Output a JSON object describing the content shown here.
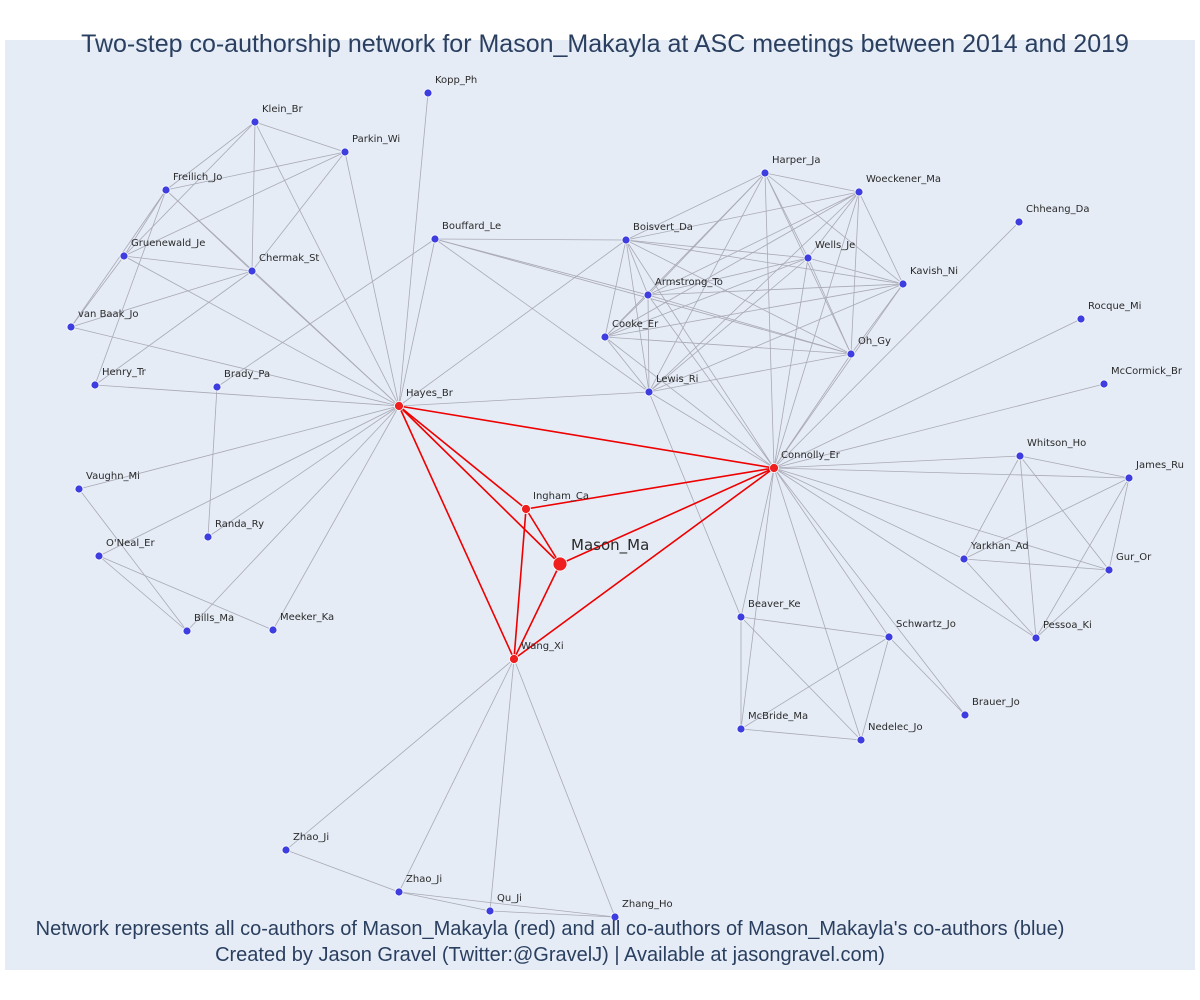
{
  "title": "Two-step co-authorship network for Mason_Makayla at ASC meetings between 2014 and 2019",
  "footer": {
    "line1": "Network represents all co-authors of Mason_Makayla (red) and all co-authors of Mason_Makayla's co-authors (blue)",
    "line2": "Created by Jason Gravel (Twitter:@GravelJ) | Available at jasongravel.com)"
  },
  "colors": {
    "ego": "#ef1f1f",
    "first_degree": "#ef1f1f",
    "second_degree": "#3d3de0",
    "red_edge": "#ee0000",
    "gray_edge": "#a9a9b5",
    "background": "#e5ecf6"
  },
  "nodes": [
    {
      "id": "Mason_Ma",
      "group": "ego"
    },
    {
      "id": "Hayes_Br",
      "group": "coauthor"
    },
    {
      "id": "Connolly_Er",
      "group": "coauthor"
    },
    {
      "id": "Ingham_Ca",
      "group": "coauthor"
    },
    {
      "id": "Wang_Xi",
      "group": "coauthor"
    },
    {
      "id": "Kopp_Ph",
      "group": "second"
    },
    {
      "id": "Klein_Br",
      "group": "second"
    },
    {
      "id": "Parkin_Wi",
      "group": "second"
    },
    {
      "id": "Freilich_Jo",
      "group": "second"
    },
    {
      "id": "Gruenewald_Je",
      "group": "second"
    },
    {
      "id": "Chermak_St",
      "group": "second"
    },
    {
      "id": "van Baak_Jo",
      "group": "second"
    },
    {
      "id": "Henry_Tr",
      "group": "second"
    },
    {
      "id": "Brady_Pa",
      "group": "second"
    },
    {
      "id": "Bouffard_Le",
      "group": "second"
    },
    {
      "id": "Vaughn_Mi",
      "group": "second"
    },
    {
      "id": "O'Neal_Er",
      "group": "second"
    },
    {
      "id": "Randa_Ry",
      "group": "second"
    },
    {
      "id": "Bills_Ma",
      "group": "second"
    },
    {
      "id": "Meeker_Ka",
      "group": "second"
    },
    {
      "id": "Harper_Ja",
      "group": "second"
    },
    {
      "id": "Woeckener_Ma",
      "group": "second"
    },
    {
      "id": "Boisvert_Da",
      "group": "second"
    },
    {
      "id": "Wells_Je",
      "group": "second"
    },
    {
      "id": "Kavish_Ni",
      "group": "second"
    },
    {
      "id": "Armstrong_To",
      "group": "second"
    },
    {
      "id": "Cooke_Er",
      "group": "second"
    },
    {
      "id": "Oh_Gy",
      "group": "second"
    },
    {
      "id": "Lewis_Ri",
      "group": "second"
    },
    {
      "id": "Chheang_Da",
      "group": "second"
    },
    {
      "id": "Rocque_Mi",
      "group": "second"
    },
    {
      "id": "McCormick_Br",
      "group": "second"
    },
    {
      "id": "Whitson_Ho",
      "group": "second"
    },
    {
      "id": "James_Ru",
      "group": "second"
    },
    {
      "id": "Yarkhan_Ad",
      "group": "second"
    },
    {
      "id": "Gur_Or",
      "group": "second"
    },
    {
      "id": "Pessoa_Ki",
      "group": "second"
    },
    {
      "id": "Beaver_Ke",
      "group": "second"
    },
    {
      "id": "Schwartz_Jo",
      "group": "second"
    },
    {
      "id": "Brauer_Jo",
      "group": "second"
    },
    {
      "id": "McBride_Ma",
      "group": "second"
    },
    {
      "id": "Nedelec_Jo",
      "group": "second"
    },
    {
      "id": "Zhao_Ji (1)",
      "label": "Zhao_Ji",
      "group": "second"
    },
    {
      "id": "Zhao_Ji (2)",
      "label": "Zhao_Ji",
      "group": "second"
    },
    {
      "id": "Qu_Ji",
      "group": "second"
    },
    {
      "id": "Zhang_Ho",
      "group": "second"
    }
  ],
  "edges": [
    [
      "Mason_Ma",
      "Hayes_Br"
    ],
    [
      "Mason_Ma",
      "Connolly_Er"
    ],
    [
      "Mason_Ma",
      "Ingham_Ca"
    ],
    [
      "Mason_Ma",
      "Wang_Xi"
    ],
    [
      "Hayes_Br",
      "Ingham_Ca"
    ],
    [
      "Hayes_Br",
      "Wang_Xi"
    ],
    [
      "Hayes_Br",
      "Connolly_Er"
    ],
    [
      "Ingham_Ca",
      "Connolly_Er"
    ],
    [
      "Ingham_Ca",
      "Wang_Xi"
    ],
    [
      "Wang_Xi",
      "Connolly_Er"
    ],
    [
      "Hayes_Br",
      "Kopp_Ph"
    ],
    [
      "Hayes_Br",
      "Klein_Br"
    ],
    [
      "Hayes_Br",
      "Parkin_Wi"
    ],
    [
      "Hayes_Br",
      "Freilich_Jo"
    ],
    [
      "Hayes_Br",
      "Gruenewald_Je"
    ],
    [
      "Hayes_Br",
      "Chermak_St"
    ],
    [
      "Hayes_Br",
      "van Baak_Jo"
    ],
    [
      "Hayes_Br",
      "Henry_Tr"
    ],
    [
      "Hayes_Br",
      "Bouffard_Le"
    ],
    [
      "Hayes_Br",
      "Boisvert_Da"
    ],
    [
      "Hayes_Br",
      "Lewis_Ri"
    ],
    [
      "Hayes_Br",
      "Vaughn_Mi"
    ],
    [
      "Hayes_Br",
      "O'Neal_Er"
    ],
    [
      "Hayes_Br",
      "Bills_Ma"
    ],
    [
      "Hayes_Br",
      "Meeker_Ka"
    ],
    [
      "Hayes_Br",
      "Randa_Ry"
    ],
    [
      "Klein_Br",
      "Parkin_Wi"
    ],
    [
      "Klein_Br",
      "Freilich_Jo"
    ],
    [
      "Klein_Br",
      "Gruenewald_Je"
    ],
    [
      "Klein_Br",
      "Chermak_St"
    ],
    [
      "Parkin_Wi",
      "Freilich_Jo"
    ],
    [
      "Parkin_Wi",
      "Gruenewald_Je"
    ],
    [
      "Parkin_Wi",
      "Chermak_St"
    ],
    [
      "Freilich_Jo",
      "Gruenewald_Je"
    ],
    [
      "Freilich_Jo",
      "Chermak_St"
    ],
    [
      "Freilich_Jo",
      "van Baak_Jo"
    ],
    [
      "Freilich_Jo",
      "Henry_Tr"
    ],
    [
      "Gruenewald_Je",
      "Chermak_St"
    ],
    [
      "Gruenewald_Je",
      "van Baak_Jo"
    ],
    [
      "Chermak_St",
      "van Baak_Jo"
    ],
    [
      "Chermak_St",
      "Henry_Tr"
    ],
    [
      "Brady_Pa",
      "Bouffard_Le"
    ],
    [
      "Brady_Pa",
      "Randa_Ry"
    ],
    [
      "O'Neal_Er",
      "Bills_Ma"
    ],
    [
      "O'Neal_Er",
      "Meeker_Ka"
    ],
    [
      "Vaughn_Mi",
      "Bills_Ma"
    ],
    [
      "Bouffard_Le",
      "Boisvert_Da"
    ],
    [
      "Bouffard_Le",
      "Armstrong_To"
    ],
    [
      "Bouffard_Le",
      "Lewis_Ri"
    ],
    [
      "Bouffard_Le",
      "Oh_Gy"
    ],
    [
      "Connolly_Er",
      "Harper_Ja"
    ],
    [
      "Connolly_Er",
      "Woeckener_Ma"
    ],
    [
      "Connolly_Er",
      "Boisvert_Da"
    ],
    [
      "Connolly_Er",
      "Wells_Je"
    ],
    [
      "Connolly_Er",
      "Kavish_Ni"
    ],
    [
      "Connolly_Er",
      "Armstrong_To"
    ],
    [
      "Connolly_Er",
      "Cooke_Er"
    ],
    [
      "Connolly_Er",
      "Oh_Gy"
    ],
    [
      "Connolly_Er",
      "Lewis_Ri"
    ],
    [
      "Connolly_Er",
      "Chheang_Da"
    ],
    [
      "Connolly_Er",
      "Rocque_Mi"
    ],
    [
      "Connolly_Er",
      "McCormick_Br"
    ],
    [
      "Connolly_Er",
      "Whitson_Ho"
    ],
    [
      "Connolly_Er",
      "James_Ru"
    ],
    [
      "Connolly_Er",
      "Yarkhan_Ad"
    ],
    [
      "Connolly_Er",
      "Gur_Or"
    ],
    [
      "Connolly_Er",
      "Pessoa_Ki"
    ],
    [
      "Connolly_Er",
      "Beaver_Ke"
    ],
    [
      "Connolly_Er",
      "Schwartz_Jo"
    ],
    [
      "Connolly_Er",
      "Brauer_Jo"
    ],
    [
      "Connolly_Er",
      "McBride_Ma"
    ],
    [
      "Connolly_Er",
      "Nedelec_Jo"
    ],
    [
      "Harper_Ja",
      "Woeckener_Ma"
    ],
    [
      "Harper_Ja",
      "Boisvert_Da"
    ],
    [
      "Harper_Ja",
      "Wells_Je"
    ],
    [
      "Harper_Ja",
      "Kavish_Ni"
    ],
    [
      "Harper_Ja",
      "Armstrong_To"
    ],
    [
      "Harper_Ja",
      "Cooke_Er"
    ],
    [
      "Harper_Ja",
      "Oh_Gy"
    ],
    [
      "Harper_Ja",
      "Lewis_Ri"
    ],
    [
      "Woeckener_Ma",
      "Wells_Je"
    ],
    [
      "Woeckener_Ma",
      "Kavish_Ni"
    ],
    [
      "Woeckener_Ma",
      "Armstrong_To"
    ],
    [
      "Woeckener_Ma",
      "Cooke_Er"
    ],
    [
      "Woeckener_Ma",
      "Oh_Gy"
    ],
    [
      "Woeckener_Ma",
      "Lewis_Ri"
    ],
    [
      "Woeckener_Ma",
      "Boisvert_Da"
    ],
    [
      "Boisvert_Da",
      "Wells_Je"
    ],
    [
      "Boisvert_Da",
      "Armstrong_To"
    ],
    [
      "Boisvert_Da",
      "Cooke_Er"
    ],
    [
      "Boisvert_Da",
      "Lewis_Ri"
    ],
    [
      "Boisvert_Da",
      "Oh_Gy"
    ],
    [
      "Boisvert_Da",
      "Kavish_Ni"
    ],
    [
      "Wells_Je",
      "Kavish_Ni"
    ],
    [
      "Wells_Je",
      "Armstrong_To"
    ],
    [
      "Wells_Je",
      "Cooke_Er"
    ],
    [
      "Wells_Je",
      "Oh_Gy"
    ],
    [
      "Wells_Je",
      "Lewis_Ri"
    ],
    [
      "Kavish_Ni",
      "Armstrong_To"
    ],
    [
      "Kavish_Ni",
      "Cooke_Er"
    ],
    [
      "Kavish_Ni",
      "Oh_Gy"
    ],
    [
      "Kavish_Ni",
      "Lewis_Ri"
    ],
    [
      "Armstrong_To",
      "Cooke_Er"
    ],
    [
      "Armstrong_To",
      "Oh_Gy"
    ],
    [
      "Armstrong_To",
      "Lewis_Ri"
    ],
    [
      "Cooke_Er",
      "Oh_Gy"
    ],
    [
      "Cooke_Er",
      "Lewis_Ri"
    ],
    [
      "Oh_Gy",
      "Lewis_Ri"
    ],
    [
      "Lewis_Ri",
      "Beaver_Ke"
    ],
    [
      "Whitson_Ho",
      "James_Ru"
    ],
    [
      "Whitson_Ho",
      "Yarkhan_Ad"
    ],
    [
      "Whitson_Ho",
      "Gur_Or"
    ],
    [
      "Whitson_Ho",
      "Pessoa_Ki"
    ],
    [
      "James_Ru",
      "Yarkhan_Ad"
    ],
    [
      "James_Ru",
      "Gur_Or"
    ],
    [
      "James_Ru",
      "Pessoa_Ki"
    ],
    [
      "Yarkhan_Ad",
      "Gur_Or"
    ],
    [
      "Yarkhan_Ad",
      "Pessoa_Ki"
    ],
    [
      "Gur_Or",
      "Pessoa_Ki"
    ],
    [
      "Beaver_Ke",
      "Schwartz_Jo"
    ],
    [
      "Beaver_Ke",
      "McBride_Ma"
    ],
    [
      "Beaver_Ke",
      "Nedelec_Jo"
    ],
    [
      "Schwartz_Jo",
      "McBride_Ma"
    ],
    [
      "Schwartz_Jo",
      "Nedelec_Jo"
    ],
    [
      "Schwartz_Jo",
      "Brauer_Jo"
    ],
    [
      "McBride_Ma",
      "Nedelec_Jo"
    ],
    [
      "Wang_Xi",
      "Zhao_Ji (1)"
    ],
    [
      "Wang_Xi",
      "Zhao_Ji (2)"
    ],
    [
      "Wang_Xi",
      "Qu_Ji"
    ],
    [
      "Wang_Xi",
      "Zhang_Ho"
    ],
    [
      "Zhao_Ji (1)",
      "Zhao_Ji (2)"
    ],
    [
      "Zhao_Ji (2)",
      "Qu_Ji"
    ],
    [
      "Zhao_Ji (2)",
      "Zhang_Ho"
    ],
    [
      "Qu_Ji",
      "Zhang_Ho"
    ]
  ]
}
